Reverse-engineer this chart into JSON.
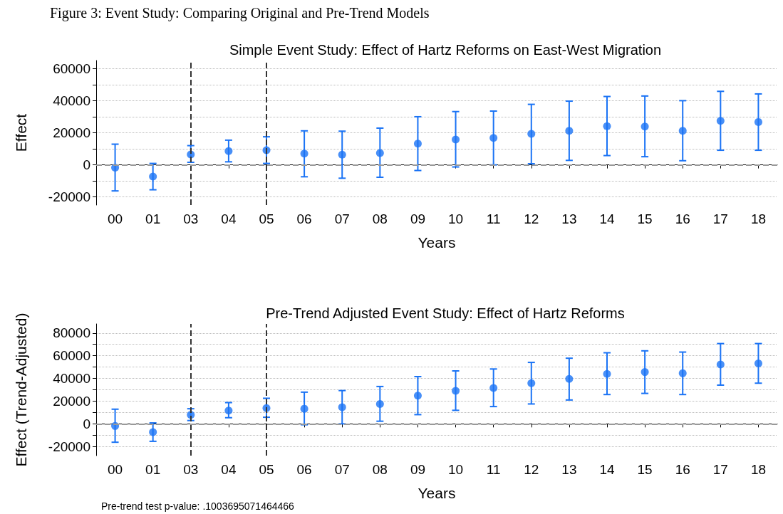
{
  "chart_data": [
    {
      "type": "scatter",
      "title": "Simple Event Study: Effect of Hartz Reforms on East-West Migration",
      "xlabel": "Years",
      "ylabel": "Effect",
      "annotations": [
        "Figure 3: Event Study: Comparing Original and Pre-Trend Models"
      ],
      "categories": [
        "00",
        "01",
        "03",
        "04",
        "05",
        "06",
        "07",
        "08",
        "09",
        "10",
        "11",
        "12",
        "13",
        "14",
        "15",
        "16",
        "17",
        "18"
      ],
      "series": [
        {
          "color": "#1a73f5",
          "values": [
            -1700,
            -7300,
            6500,
            8600,
            9100,
            7000,
            6400,
            7400,
            13200,
            15800,
            16800,
            19300,
            21200,
            24100,
            23900,
            21200,
            27400,
            26700
          ],
          "errors": [
            [
              -16200,
              12900
            ],
            [
              -15500,
              900
            ],
            [
              1600,
              12000
            ],
            [
              1900,
              15400
            ],
            [
              900,
              17500
            ],
            [
              -7400,
              21200
            ],
            [
              -8300,
              21000
            ],
            [
              -7700,
              22900
            ],
            [
              -3500,
              30000
            ],
            [
              -1300,
              33200
            ],
            [
              0,
              33500
            ],
            [
              700,
              37700
            ],
            [
              2800,
              39700
            ],
            [
              5800,
              42600
            ],
            [
              5100,
              42900
            ],
            [
              2600,
              40000
            ],
            [
              9100,
              45800
            ],
            [
              9100,
              44200
            ]
          ]
        }
      ],
      "ylim": [
        -25000,
        65000
      ],
      "yticks": [
        -20000,
        {
          "value": -10000,
          "label": null
        },
        0,
        {
          "value": 10000,
          "label": null
        },
        20000,
        {
          "value": 30000,
          "label": null
        },
        40000,
        {
          "value": 50000,
          "label": null
        },
        60000
      ],
      "grid": "y",
      "marker": "circle",
      "ref_lines": [
        {
          "axis": "x",
          "value": "03",
          "color": "#333333",
          "line_style": "dashed"
        },
        {
          "axis": "x",
          "value": "05",
          "color": "#333333",
          "line_style": "dashed"
        },
        {
          "axis": "y",
          "value": 0,
          "color": "#999999",
          "line_style": "dashed"
        }
      ]
    },
    {
      "type": "scatter",
      "title": "Pre-Trend Adjusted Event Study: Effect of Hartz Reforms",
      "xlabel": "Years",
      "ylabel": "Effect (Trend-Adjusted)",
      "annotations": [
        "Pre-trend test p-value: .1003695071464466"
      ],
      "categories": [
        "00",
        "01",
        "03",
        "04",
        "05",
        "06",
        "07",
        "08",
        "09",
        "10",
        "11",
        "12",
        "13",
        "14",
        "15",
        "16",
        "17",
        "18"
      ],
      "series": [
        {
          "color": "#1a73f5",
          "values": [
            -1900,
            -7300,
            7900,
            11600,
            13900,
            13300,
            14600,
            17500,
            24800,
            29100,
            31600,
            35800,
            39500,
            43900,
            45600,
            44500,
            52200,
            53200
          ],
          "errors": [
            [
              -16200,
              12900
            ],
            [
              -15400,
              800
            ],
            [
              2900,
              13300
            ],
            [
              5400,
              18700
            ],
            [
              5800,
              22500
            ],
            [
              -800,
              27900
            ],
            [
              0,
              29300
            ],
            [
              2300,
              32900
            ],
            [
              8100,
              41600
            ],
            [
              11900,
              46600
            ],
            [
              15200,
              48300
            ],
            [
              17500,
              54100
            ],
            [
              21000,
              57800
            ],
            [
              25800,
              62600
            ],
            [
              26800,
              64300
            ],
            [
              25800,
              63200
            ],
            [
              34100,
              70700
            ],
            [
              35800,
              70700
            ]
          ]
        }
      ],
      "ylim": [
        -28000,
        88000
      ],
      "yticks": [
        -20000,
        {
          "value": -10000,
          "label": null
        },
        0,
        {
          "value": 10000,
          "label": null
        },
        20000,
        {
          "value": 30000,
          "label": null
        },
        40000,
        {
          "value": 50000,
          "label": null
        },
        60000,
        {
          "value": 70000,
          "label": null
        },
        80000
      ],
      "grid": "y",
      "marker": "circle",
      "ref_lines": [
        {
          "axis": "x",
          "value": "03",
          "color": "#333333",
          "line_style": "dashed"
        },
        {
          "axis": "x",
          "value": "05",
          "color": "#333333",
          "line_style": "dashed"
        },
        {
          "axis": "y",
          "value": 0,
          "color": "#999999",
          "line_style": "dashed"
        }
      ]
    }
  ]
}
